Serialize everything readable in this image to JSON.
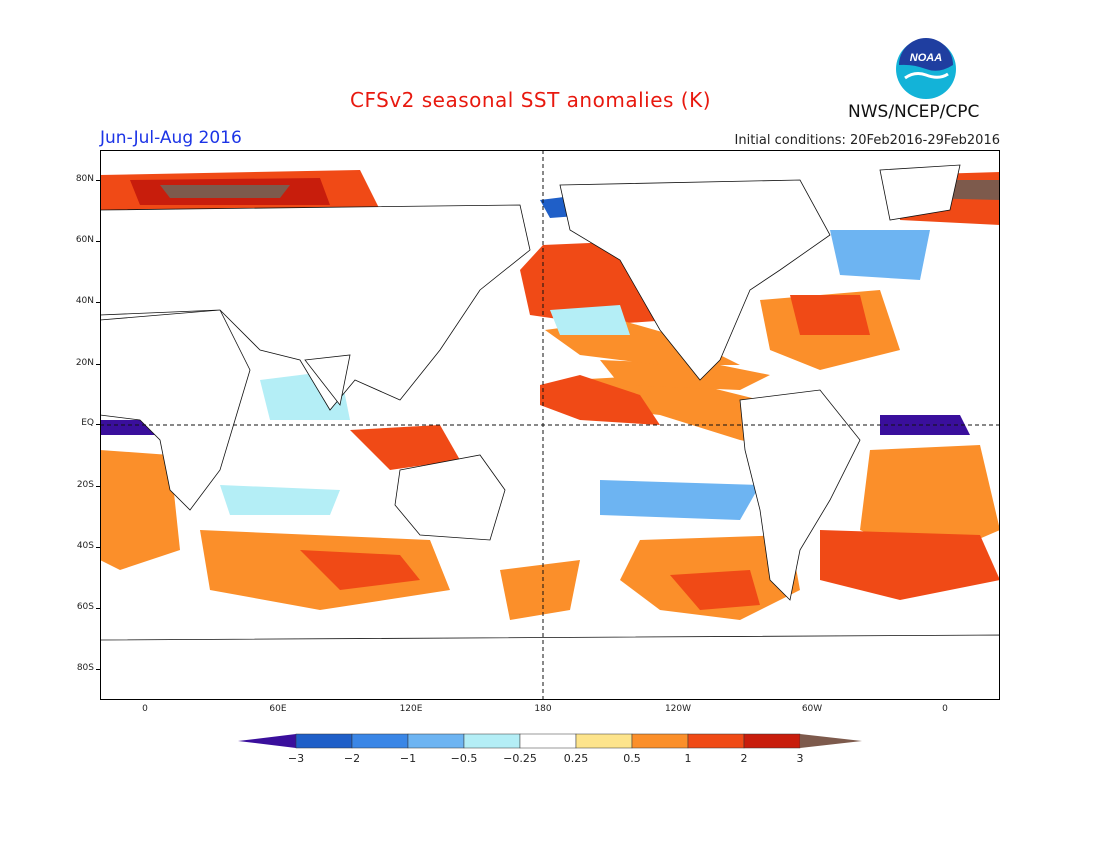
{
  "title": "CFSv2 seasonal SST anomalies (K)",
  "period": "Jun-Jul-Aug 2016",
  "initial_conditions": "Initial conditions: 20Feb2016-29Feb2016",
  "agency": "NWS/NCEP/CPC",
  "logo_text": "NOAA",
  "lat_labels": [
    "80N",
    "60N",
    "40N",
    "20N",
    "EQ",
    "20S",
    "40S",
    "60S",
    "80S"
  ],
  "lon_labels": [
    "0",
    "60E",
    "120E",
    "180",
    "120W",
    "60W",
    "0"
  ],
  "colorbar": {
    "labels": [
      "−3",
      "−2",
      "−1",
      "−0.5",
      "−0.25",
      "0.25",
      "0.5",
      "1",
      "2",
      "3"
    ],
    "colors": [
      "#3a0f9c",
      "#1f5fc8",
      "#3a86e6",
      "#6db4f2",
      "#b4eef6",
      "#ffffff",
      "#fde48c",
      "#fb8f2a",
      "#f04a16",
      "#c81d0c",
      "#7d5a4c"
    ]
  },
  "colors": {
    "title": "#e8190f",
    "period": "#1c34e6",
    "land": "#ffffff",
    "coast": "#111111"
  }
}
